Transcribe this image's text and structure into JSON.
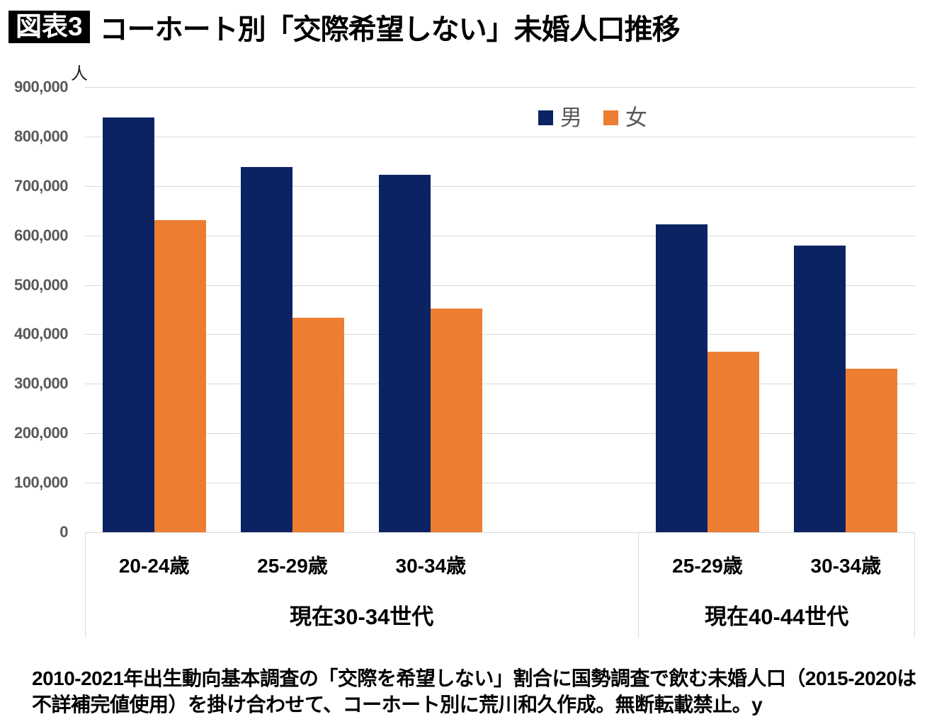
{
  "header": {
    "badge": "図表3",
    "title": "コーホート別「交際希望しない」未婚人口推移"
  },
  "chart_data": {
    "type": "bar",
    "title": "コーホート別「交際希望しない」未婚人口推移",
    "unit_label": "人",
    "ylim": [
      0,
      900000
    ],
    "ytick_step": 100000,
    "yticks_top_to_bottom": [
      "900,000",
      "800,000",
      "700,000",
      "600,000",
      "500,000",
      "400,000",
      "300,000",
      "200,000",
      "100,000",
      "0"
    ],
    "grid": true,
    "legend_position": "top",
    "legend": [
      {
        "name": "男",
        "color": "#0b2363"
      },
      {
        "name": "女",
        "color": "#ed7d31"
      }
    ],
    "groups": [
      {
        "label": "現在30-34世代",
        "categories": [
          "20-24歳",
          "25-29歳",
          "30-34歳"
        ],
        "series": [
          {
            "name": "男",
            "values": [
              838000,
              738000,
              723000
            ]
          },
          {
            "name": "女",
            "values": [
              631000,
              433000,
              452000
            ]
          }
        ]
      },
      {
        "label": "現在40-44世代",
        "categories": [
          "25-29歳",
          "30-34歳"
        ],
        "series": [
          {
            "name": "男",
            "values": [
              623000,
              580000
            ]
          },
          {
            "name": "女",
            "values": [
              365000,
              330000
            ]
          }
        ]
      }
    ],
    "colors": {
      "gridline": "#d9d9d9",
      "axis_text": "#595959",
      "male": "#0b2363",
      "female": "#ed7d31"
    }
  },
  "footer": {
    "source_text": "2010-2021年出生動向基本調査の「交際を希望しない」割合に国勢調査で飲む未婚人口（2015-2020は不詳補完値使用）を掛け合わせて、コーホート別に荒川和久作成。無断転載禁止。y"
  }
}
